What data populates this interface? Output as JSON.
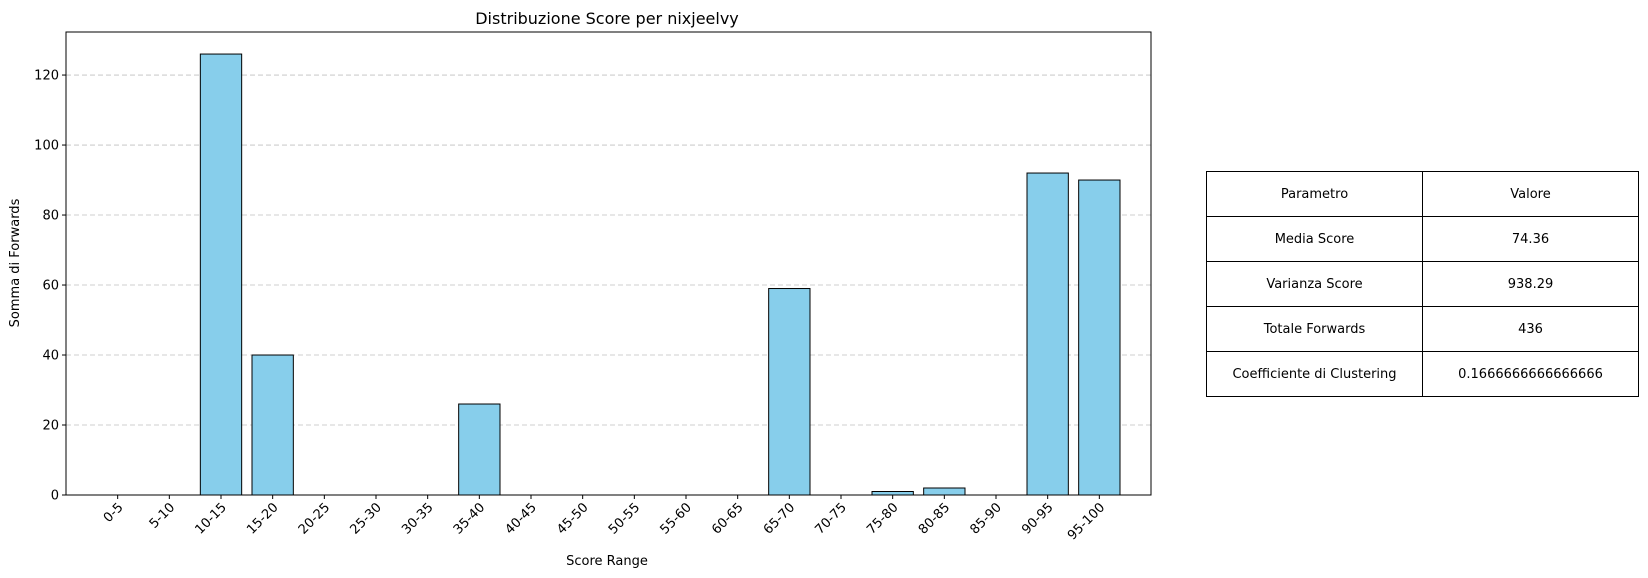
{
  "chart_data": {
    "type": "bar",
    "title": "Distribuzione Score per nixjeelvy",
    "xlabel": "Score Range",
    "ylabel": "Somma di Forwards",
    "categories": [
      "0-5",
      "5-10",
      "10-15",
      "15-20",
      "20-25",
      "25-30",
      "30-35",
      "35-40",
      "40-45",
      "45-50",
      "50-55",
      "55-60",
      "60-65",
      "65-70",
      "70-75",
      "75-80",
      "80-85",
      "85-90",
      "90-95",
      "95-100"
    ],
    "values": [
      0,
      0,
      126,
      40,
      0,
      0,
      0,
      26,
      0,
      0,
      0,
      0,
      0,
      59,
      0,
      1,
      2,
      0,
      92,
      90
    ],
    "ylim": [
      0,
      132.3
    ],
    "yticks": [
      0,
      20,
      40,
      60,
      80,
      100,
      120
    ],
    "grid": "y",
    "bar_color": "#87CEEB",
    "edge_color": "#000000"
  },
  "table": {
    "headers": [
      "Parametro",
      "Valore"
    ],
    "rows": [
      [
        "Media Score",
        "74.36"
      ],
      [
        "Varianza Score",
        "938.29"
      ],
      [
        "Totale Forwards",
        "436"
      ],
      [
        "Coefficiente di Clustering",
        "0.1666666666666666"
      ]
    ]
  }
}
